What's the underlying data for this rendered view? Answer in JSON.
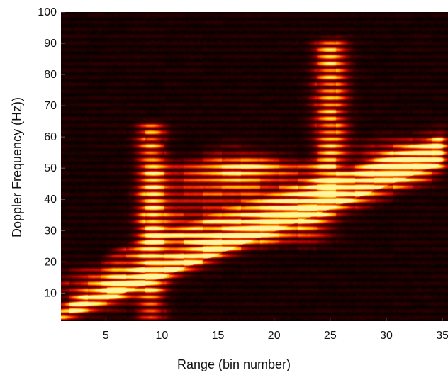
{
  "chart_data": {
    "type": "heatmap",
    "title": "",
    "xlabel": "Range (bin number)",
    "ylabel": "Doppler Frequency (Hz))",
    "xlim": [
      1,
      35.5
    ],
    "ylim": [
      1,
      100
    ],
    "xticks": [
      5,
      10,
      15,
      20,
      25,
      30,
      35
    ],
    "yticks": [
      10,
      20,
      30,
      40,
      50,
      60,
      70,
      80,
      90,
      100
    ],
    "colormap": "hot",
    "colormap_stops": [
      "#000000",
      "#3d0000",
      "#9e0000",
      "#e81e00",
      "#ff8a00",
      "#ffd200",
      "#fff6a0"
    ],
    "background_color": "#1a0000",
    "grid": false,
    "doppler_line_spacing_hz": 2.2,
    "regions": [
      {
        "name": "diagonal-band",
        "x_start": 1,
        "x_end": 34.5,
        "y_low_start": 2,
        "y_low_end": 51,
        "width_hz_start": 3,
        "width_hz_end": 7,
        "intensity": 0.95
      },
      {
        "name": "upper-wedge",
        "x_start": 6,
        "x_end": 34,
        "y_ceiling_start": 22,
        "y_ceiling_end": 57,
        "intensity": 0.6
      },
      {
        "name": "central-bright-body",
        "x_start": 10,
        "x_end": 23,
        "y_low": 28,
        "y_high": 50,
        "intensity": 0.8
      },
      {
        "name": "column-bin-9",
        "x_center": 9,
        "half_width_bins": 1.2,
        "y_low": 3,
        "y_high": 63,
        "intensity": 0.75
      },
      {
        "name": "column-bin-25",
        "x_center": 25,
        "half_width_bins": 1.4,
        "y_low": 40,
        "y_high": 90,
        "intensity": 0.8
      },
      {
        "name": "peak-bin-17",
        "x_center": 17,
        "y_center": 50,
        "intensity": 0.9
      },
      {
        "name": "peak-bin-31",
        "x_center": 31,
        "y_center": 53,
        "intensity": 0.9
      },
      {
        "name": "peak-low-range",
        "x_center": 4.5,
        "y_center": 12,
        "intensity": 1.0
      }
    ]
  }
}
